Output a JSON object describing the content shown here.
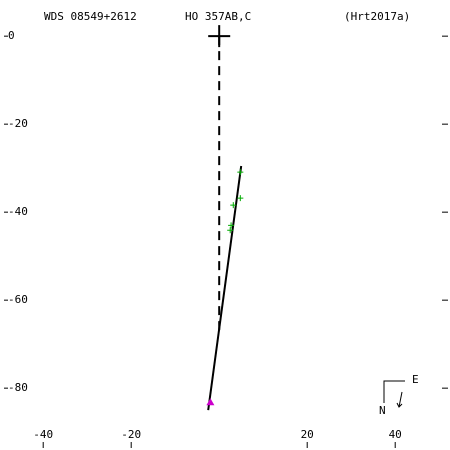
{
  "chart_data": {
    "type": "scatter",
    "title": "WDS 08549+2612",
    "subtitle": "HO  357AB,C",
    "reference": "(Hrt2017a)",
    "compass": {
      "east": "E",
      "north": "N"
    },
    "xlim": [
      -48,
      52
    ],
    "ylim": [
      -93.6,
      6.4
    ],
    "xticks": [
      -40,
      -20,
      20,
      40
    ],
    "yticks": [
      0,
      -20,
      -40,
      -60,
      -80
    ],
    "series": [
      {
        "color": "#000000",
        "style": "dashed",
        "x": [
          0,
          0
        ],
        "y": [
          0,
          -67
        ]
      },
      {
        "color": "#000000",
        "style": "solid",
        "x": [
          5,
          -2.5
        ],
        "y": [
          -29.5,
          -85
        ]
      },
      {
        "color": "#00aa00",
        "marker": "plus",
        "x": [
          4.8,
          4.8,
          3.2,
          2.7,
          2.5
        ],
        "y": [
          -30.9,
          -36.8,
          -38.4,
          -43,
          -44.1
        ]
      },
      {
        "color": "#cc00cc",
        "marker": "triangle",
        "x": [
          -2
        ],
        "y": [
          -83.2
        ]
      },
      {
        "color": "#000000",
        "marker": "plus-large",
        "x": [
          0
        ],
        "y": [
          0
        ]
      }
    ]
  }
}
